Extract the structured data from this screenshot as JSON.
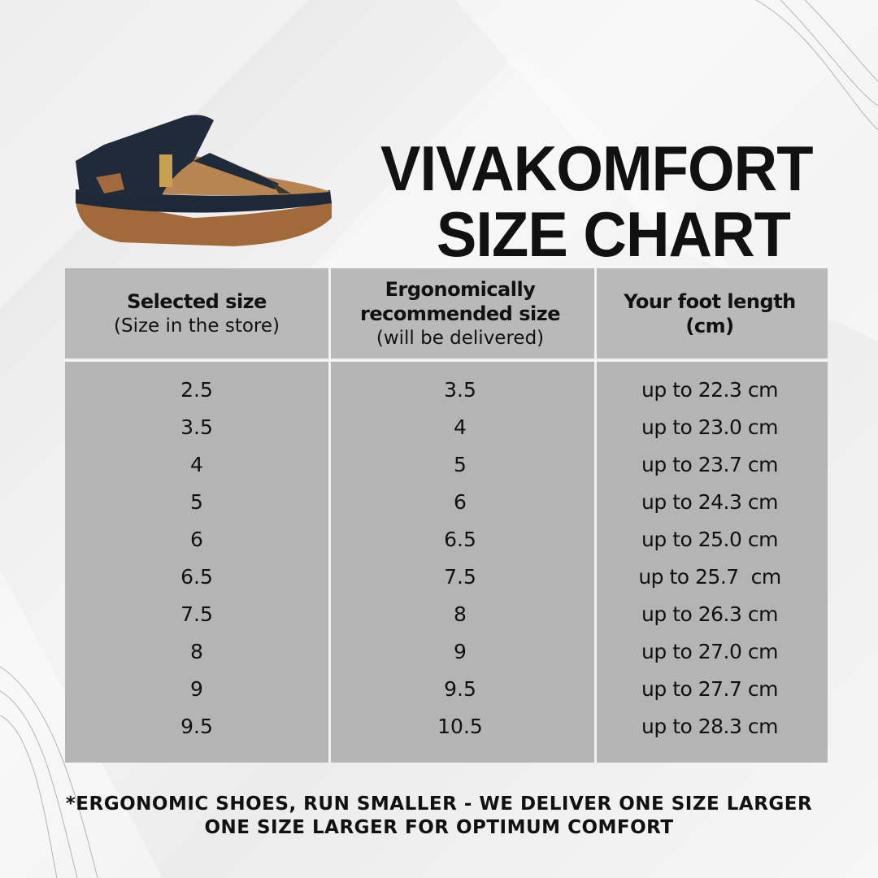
{
  "brand": "VIVAKOMFORT",
  "title": "SIZE CHART",
  "image": {
    "icon": "sandal-image"
  },
  "headers": [
    {
      "main": "Selected size",
      "sub": "(Size in the store)"
    },
    {
      "main": "Ergonomically recommended size",
      "sub": "(will be delivered)"
    },
    {
      "main": "Your foot length (cm)",
      "sub": ""
    }
  ],
  "rows": [
    [
      "2.5",
      "3.5",
      "up to 22.3 cm"
    ],
    [
      "3.5",
      "4",
      "up to 23.0 cm"
    ],
    [
      "4",
      "5",
      "up to 23.7 cm"
    ],
    [
      "5",
      "6",
      "up to 24.3 cm"
    ],
    [
      "6",
      "6.5",
      "up to 25.0 cm"
    ],
    [
      "6.5",
      "7.5",
      "up to 25.7  cm"
    ],
    [
      "7.5",
      "8",
      "up to 26.3 cm"
    ],
    [
      "8",
      "9",
      "up to 27.0 cm"
    ],
    [
      "9",
      "9.5",
      "up to 27.7 cm"
    ],
    [
      "9.5",
      "10.5",
      "up to 28.3 cm"
    ]
  ],
  "note": [
    "*ERGONOMIC SHOES, RUN SMALLER - WE DELIVER ONE SIZE LARGER",
    "ONE SIZE LARGER FOR OPTIMUM COMFORT"
  ],
  "colors": {
    "header_bg": "#b9b9b9",
    "body_bg": "#b4b4b4",
    "divider": "#f2f2f2"
  }
}
